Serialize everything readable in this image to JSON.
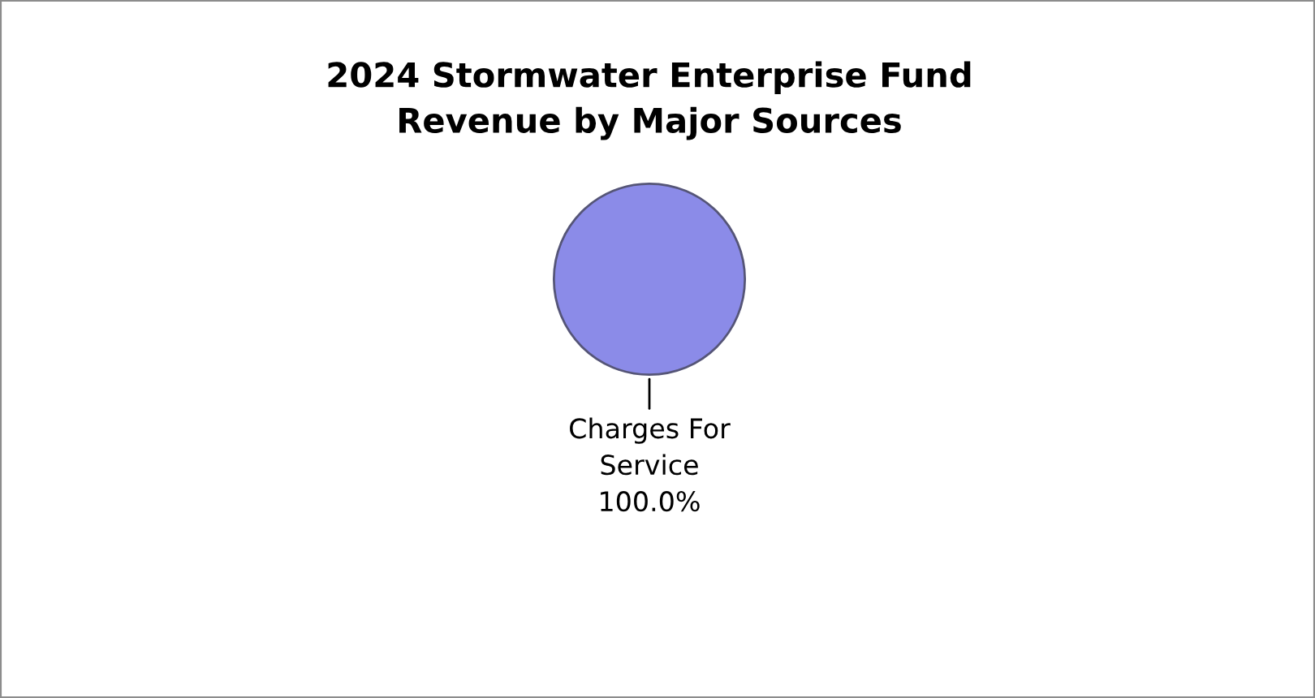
{
  "chart_data": {
    "type": "pie",
    "title": "2024 Stormwater Enterprise Fund\nRevenue by Major Sources",
    "categories": [
      "Charges For\nService"
    ],
    "values": [
      100
    ],
    "colors": [
      "#8b8be8"
    ],
    "value_labels": [
      "100.0%"
    ],
    "legend": false
  }
}
